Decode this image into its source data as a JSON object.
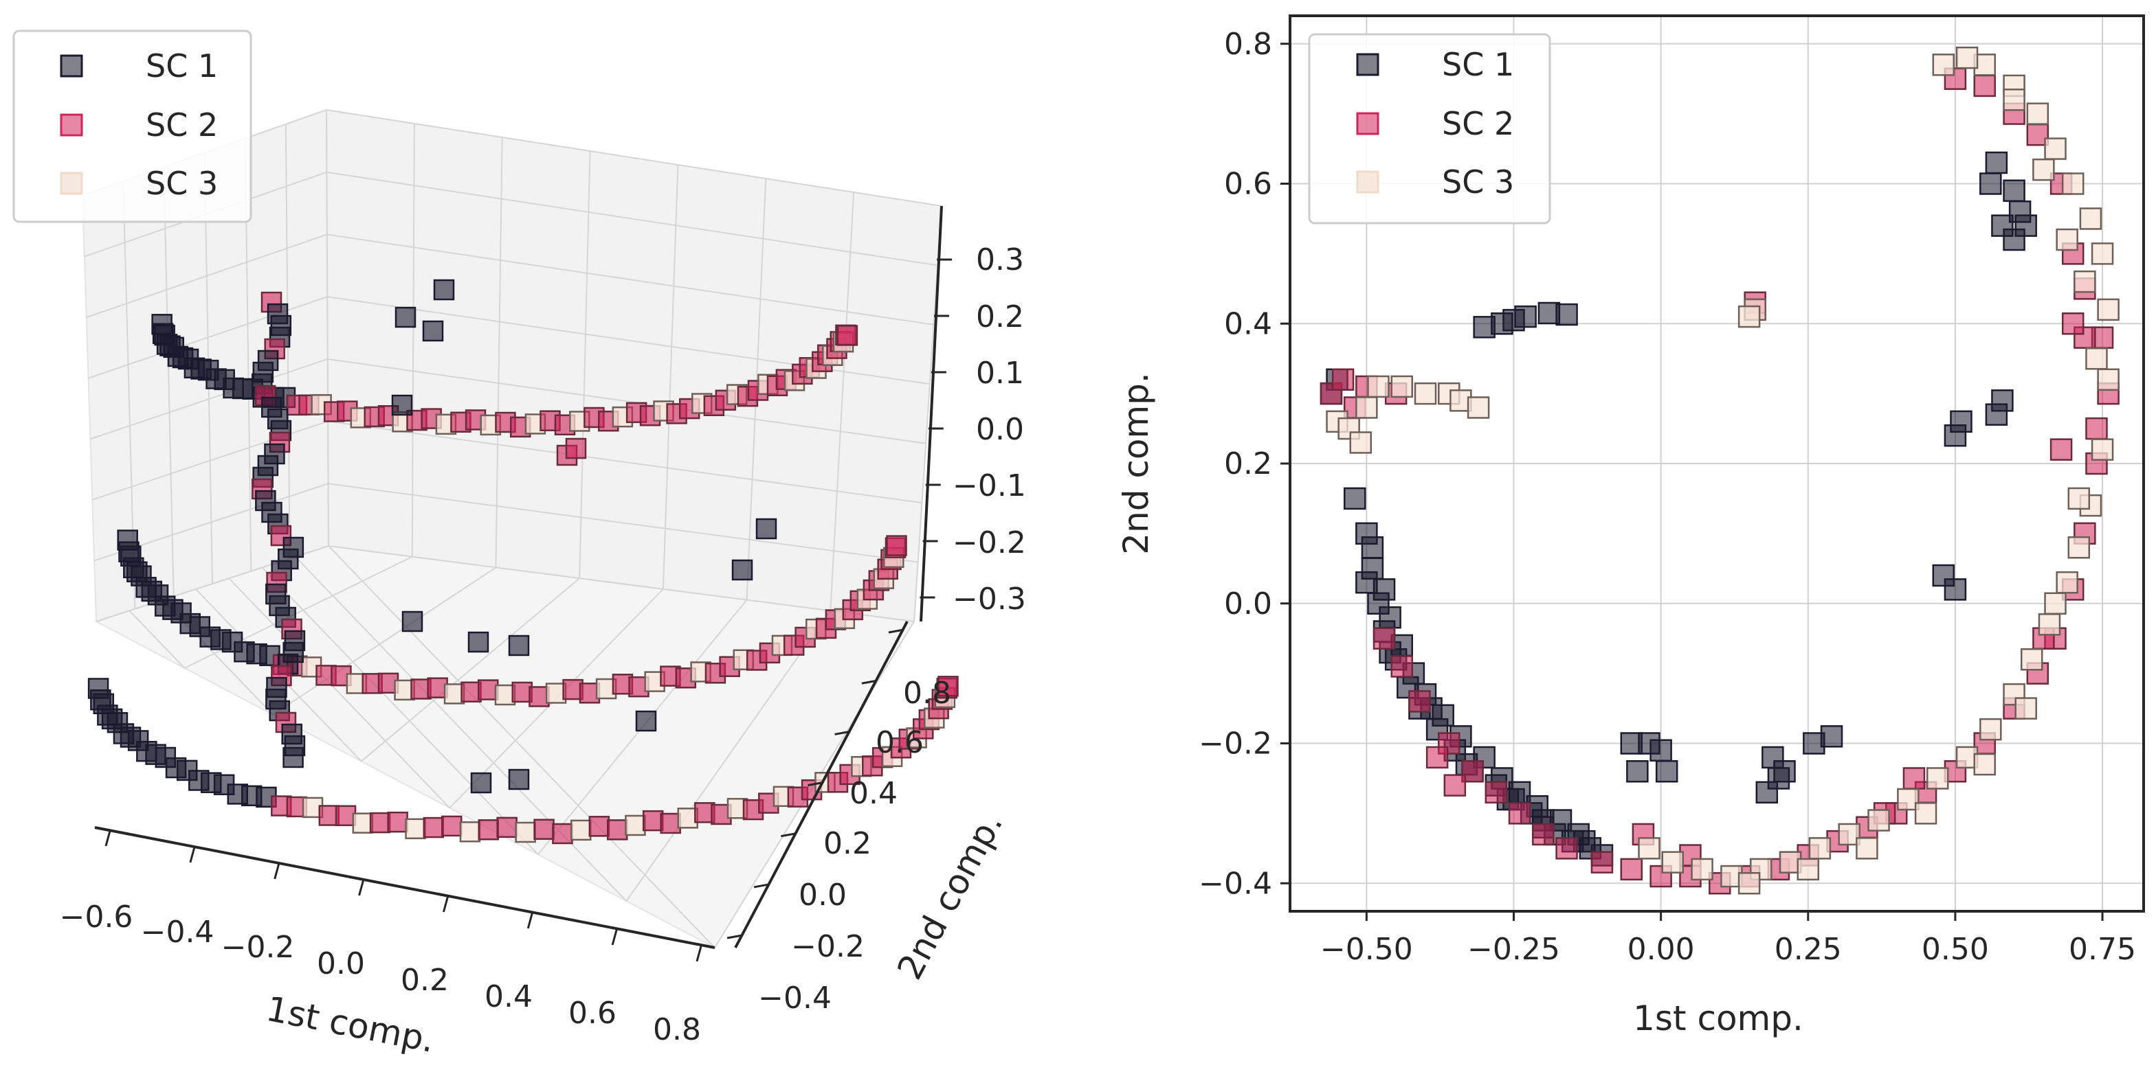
{
  "chart_data": [
    {
      "type": "scatter3d",
      "title": "",
      "xlabel": "1st comp.",
      "ylabel": "2nd comp.",
      "zlabel": "",
      "xlim": [
        -0.6,
        0.8
      ],
      "ylim": [
        -0.4,
        0.8
      ],
      "zlim": [
        -0.3,
        0.3
      ],
      "x_ticks": [
        "−0.6",
        "−0.4",
        "−0.2",
        "0.0",
        "0.2",
        "0.4",
        "0.6",
        "0.8"
      ],
      "y_ticks": [
        "−0.4",
        "−0.2",
        "0.0",
        "0.2",
        "0.4",
        "0.6",
        "0.8"
      ],
      "z_ticks": [
        "0.3",
        "0.2",
        "0.1",
        "0.0",
        "−0.1",
        "−0.2",
        "−0.3"
      ],
      "grid": true,
      "legend": "top-left",
      "marker": "square",
      "series": [
        {
          "name": "SC 1",
          "color": "#1b1b2f"
        },
        {
          "name": "SC 2",
          "color": "#d1245a"
        },
        {
          "name": "SC 3",
          "color": "#f6e4d8"
        }
      ]
    },
    {
      "type": "scatter",
      "title": "",
      "xlabel": "1st comp.",
      "ylabel": "2nd comp.",
      "xlim": [
        -0.63,
        0.82
      ],
      "ylim": [
        -0.44,
        0.84
      ],
      "x_ticks": [
        -0.5,
        -0.25,
        0.0,
        0.25,
        0.5,
        0.75
      ],
      "x_tick_labels": [
        "−0.50",
        "−0.25",
        "0.00",
        "0.25",
        "0.50",
        "0.75"
      ],
      "y_ticks": [
        -0.4,
        -0.2,
        0.0,
        0.2,
        0.4,
        0.6,
        0.8
      ],
      "y_tick_labels": [
        "−0.4",
        "−0.2",
        "0.0",
        "0.2",
        "0.4",
        "0.6",
        "0.8"
      ],
      "grid": true,
      "legend": "top-left",
      "marker": "square",
      "series": [
        {
          "name": "SC 1",
          "color": "#1b1b2f",
          "points": [
            [
              -0.52,
              0.15
            ],
            [
              -0.5,
              0.1
            ],
            [
              -0.49,
              0.05
            ],
            [
              -0.48,
              0.0
            ],
            [
              -0.47,
              -0.04
            ],
            [
              -0.45,
              -0.08
            ],
            [
              -0.43,
              -0.12
            ],
            [
              -0.41,
              -0.15
            ],
            [
              -0.38,
              -0.18
            ],
            [
              -0.35,
              -0.21
            ],
            [
              -0.32,
              -0.24
            ],
            [
              -0.28,
              -0.26
            ],
            [
              -0.25,
              -0.28
            ],
            [
              -0.22,
              -0.3
            ],
            [
              -0.2,
              -0.31
            ],
            [
              -0.18,
              -0.33
            ],
            [
              -0.15,
              -0.34
            ],
            [
              -0.12,
              -0.35
            ],
            [
              -0.1,
              -0.36
            ],
            [
              -0.49,
              0.08
            ],
            [
              -0.47,
              0.02
            ],
            [
              -0.46,
              -0.02
            ],
            [
              -0.44,
              -0.06
            ],
            [
              -0.42,
              -0.1
            ],
            [
              -0.4,
              -0.13
            ],
            [
              -0.37,
              -0.16
            ],
            [
              -0.34,
              -0.19
            ],
            [
              -0.3,
              -0.22
            ],
            [
              -0.27,
              -0.25
            ],
            [
              -0.24,
              -0.27
            ],
            [
              -0.21,
              -0.29
            ],
            [
              -0.17,
              -0.31
            ],
            [
              -0.14,
              -0.33
            ],
            [
              -0.5,
              0.03
            ],
            [
              -0.46,
              -0.07
            ],
            [
              -0.39,
              -0.15
            ],
            [
              -0.33,
              -0.23
            ],
            [
              -0.26,
              -0.28
            ],
            [
              -0.2,
              -0.32
            ],
            [
              -0.13,
              -0.34
            ],
            [
              -0.05,
              -0.2
            ],
            [
              -0.02,
              -0.2
            ],
            [
              0.0,
              -0.21
            ],
            [
              -0.04,
              -0.24
            ],
            [
              0.01,
              -0.24
            ],
            [
              0.19,
              -0.22
            ],
            [
              0.2,
              -0.25
            ],
            [
              0.18,
              -0.27
            ],
            [
              0.21,
              -0.24
            ],
            [
              0.26,
              -0.2
            ],
            [
              0.29,
              -0.19
            ],
            [
              -0.3,
              0.395
            ],
            [
              -0.27,
              0.4
            ],
            [
              -0.25,
              0.405
            ],
            [
              -0.23,
              0.41
            ],
            [
              -0.19,
              0.415
            ],
            [
              -0.16,
              0.413
            ],
            [
              -0.55,
              0.32
            ],
            [
              -0.56,
              0.3
            ],
            [
              0.5,
              0.24
            ],
            [
              0.51,
              0.26
            ],
            [
              0.58,
              0.29
            ],
            [
              0.57,
              0.27
            ],
            [
              0.48,
              0.04
            ],
            [
              0.5,
              0.02
            ],
            [
              0.6,
              0.59
            ],
            [
              0.61,
              0.56
            ],
            [
              0.62,
              0.54
            ],
            [
              0.58,
              0.54
            ],
            [
              0.6,
              0.52
            ],
            [
              0.56,
              0.6
            ],
            [
              0.57,
              0.63
            ]
          ]
        },
        {
          "name": "SC 2",
          "color": "#d1245a",
          "points": [
            [
              -0.47,
              -0.05
            ],
            [
              -0.44,
              -0.09
            ],
            [
              -0.41,
              -0.14
            ],
            [
              -0.36,
              -0.2
            ],
            [
              -0.32,
              -0.24
            ],
            [
              -0.28,
              -0.27
            ],
            [
              -0.24,
              -0.3
            ],
            [
              -0.2,
              -0.33
            ],
            [
              -0.16,
              -0.35
            ],
            [
              -0.1,
              -0.37
            ],
            [
              -0.05,
              -0.38
            ],
            [
              0.0,
              -0.39
            ],
            [
              0.05,
              -0.39
            ],
            [
              0.1,
              -0.4
            ],
            [
              0.15,
              -0.39
            ],
            [
              0.2,
              -0.38
            ],
            [
              0.25,
              -0.36
            ],
            [
              0.3,
              -0.34
            ],
            [
              0.35,
              -0.32
            ],
            [
              0.4,
              -0.3
            ],
            [
              0.45,
              -0.27
            ],
            [
              0.5,
              -0.24
            ],
            [
              0.55,
              -0.2
            ],
            [
              0.6,
              -0.15
            ],
            [
              0.64,
              -0.1
            ],
            [
              0.67,
              -0.05
            ],
            [
              0.7,
              0.02
            ],
            [
              0.72,
              0.1
            ],
            [
              0.74,
              0.2
            ],
            [
              0.76,
              0.3
            ],
            [
              0.75,
              0.38
            ],
            [
              0.72,
              0.45
            ],
            [
              0.7,
              0.5
            ],
            [
              0.68,
              0.6
            ],
            [
              0.64,
              0.67
            ],
            [
              0.6,
              0.7
            ],
            [
              0.55,
              0.74
            ],
            [
              0.5,
              0.75
            ],
            [
              -0.56,
              0.3
            ],
            [
              -0.54,
              0.32
            ],
            [
              -0.52,
              0.28
            ],
            [
              -0.5,
              0.31
            ],
            [
              -0.45,
              0.3
            ],
            [
              0.16,
              0.42
            ],
            [
              0.16,
              0.43
            ],
            [
              0.72,
              0.38
            ],
            [
              0.7,
              0.4
            ],
            [
              0.74,
              0.25
            ],
            [
              0.68,
              0.22
            ],
            [
              0.65,
              -0.05
            ],
            [
              0.43,
              -0.25
            ],
            [
              0.38,
              -0.3
            ],
            [
              -0.38,
              -0.22
            ],
            [
              -0.35,
              -0.26
            ],
            [
              0.05,
              -0.36
            ],
            [
              0.22,
              -0.37
            ],
            [
              -0.03,
              -0.33
            ]
          ]
        },
        {
          "name": "SC 3",
          "color": "#f6e4d8",
          "points": [
            [
              -0.02,
              -0.35
            ],
            [
              0.02,
              -0.37
            ],
            [
              0.07,
              -0.38
            ],
            [
              0.12,
              -0.39
            ],
            [
              0.17,
              -0.38
            ],
            [
              0.22,
              -0.37
            ],
            [
              0.27,
              -0.35
            ],
            [
              0.32,
              -0.33
            ],
            [
              0.37,
              -0.31
            ],
            [
              0.42,
              -0.28
            ],
            [
              0.47,
              -0.25
            ],
            [
              0.52,
              -0.22
            ],
            [
              0.56,
              -0.18
            ],
            [
              0.6,
              -0.13
            ],
            [
              0.63,
              -0.08
            ],
            [
              0.66,
              -0.03
            ],
            [
              0.69,
              0.03
            ],
            [
              0.71,
              0.08
            ],
            [
              0.73,
              0.14
            ],
            [
              0.75,
              0.22
            ],
            [
              0.76,
              0.32
            ],
            [
              0.76,
              0.42
            ],
            [
              0.75,
              0.5
            ],
            [
              0.73,
              0.55
            ],
            [
              0.7,
              0.6
            ],
            [
              0.67,
              0.65
            ],
            [
              0.64,
              0.7
            ],
            [
              0.6,
              0.74
            ],
            [
              0.55,
              0.77
            ],
            [
              0.52,
              0.78
            ],
            [
              0.48,
              0.77
            ],
            [
              -0.55,
              0.26
            ],
            [
              -0.53,
              0.25
            ],
            [
              -0.51,
              0.23
            ],
            [
              -0.5,
              0.28
            ],
            [
              -0.48,
              0.31
            ],
            [
              -0.44,
              0.31
            ],
            [
              -0.4,
              0.3
            ],
            [
              -0.36,
              0.3
            ],
            [
              -0.34,
              0.29
            ],
            [
              -0.31,
              0.28
            ],
            [
              0.16,
              0.42
            ],
            [
              0.15,
              0.41
            ],
            [
              0.72,
              0.46
            ],
            [
              0.74,
              0.35
            ],
            [
              0.71,
              0.15
            ],
            [
              0.67,
              0.0
            ],
            [
              0.62,
              -0.15
            ],
            [
              0.55,
              -0.23
            ],
            [
              0.45,
              -0.3
            ],
            [
              0.35,
              -0.35
            ],
            [
              0.25,
              -0.38
            ],
            [
              0.15,
              -0.4
            ],
            [
              0.6,
              0.72
            ],
            [
              0.65,
              0.62
            ],
            [
              0.69,
              0.52
            ]
          ]
        }
      ]
    }
  ]
}
